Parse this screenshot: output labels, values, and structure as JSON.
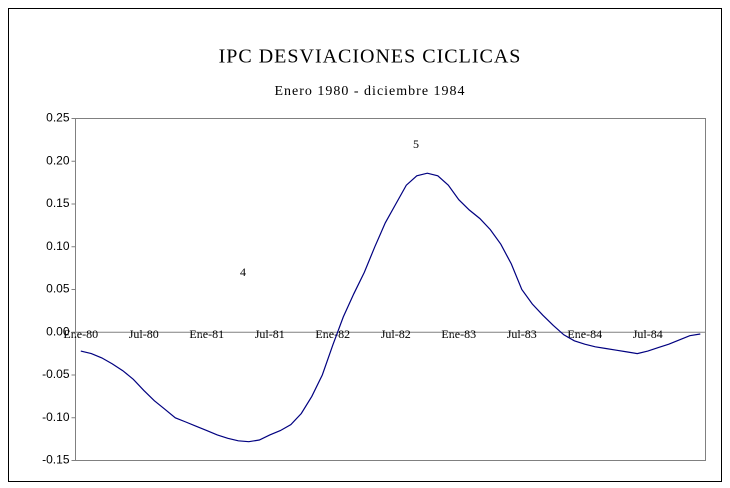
{
  "chart_data": {
    "type": "line",
    "title": "IPC DESVIACIONES CICLICAS",
    "subtitle": "Enero 1980 - diciembre 1984",
    "annotations": [
      "4",
      "5"
    ],
    "categories": [
      "Ene-80",
      null,
      null,
      null,
      null,
      null,
      "Jul-80",
      null,
      null,
      null,
      null,
      null,
      "Ene-81",
      null,
      null,
      null,
      null,
      null,
      "Jul-81",
      null,
      null,
      null,
      null,
      null,
      "Ene-82",
      null,
      null,
      null,
      null,
      null,
      "Jul-82",
      null,
      null,
      null,
      null,
      null,
      "Ene-83",
      null,
      null,
      null,
      null,
      null,
      "Jul-83",
      null,
      null,
      null,
      null,
      null,
      "Ene-84",
      null,
      null,
      null,
      null,
      null,
      "Jul-84",
      null,
      null,
      null,
      null,
      null
    ],
    "series": [
      {
        "name": "IPC",
        "color": "#000080",
        "values": [
          -0.022,
          -0.025,
          -0.03,
          -0.037,
          -0.045,
          -0.055,
          -0.068,
          -0.08,
          -0.09,
          -0.1,
          -0.105,
          -0.11,
          -0.115,
          -0.12,
          -0.124,
          -0.127,
          -0.128,
          -0.126,
          -0.12,
          -0.115,
          -0.108,
          -0.095,
          -0.075,
          -0.05,
          -0.015,
          0.018,
          0.045,
          0.07,
          0.1,
          0.128,
          0.15,
          0.172,
          0.183,
          0.186,
          0.183,
          0.172,
          0.155,
          0.143,
          0.133,
          0.12,
          0.103,
          0.08,
          0.05,
          0.033,
          0.02,
          0.008,
          -0.003,
          -0.01,
          -0.014,
          -0.017,
          -0.019,
          -0.021,
          -0.023,
          -0.025,
          -0.022,
          -0.018,
          -0.014,
          -0.009,
          -0.004,
          -0.002
        ]
      }
    ],
    "ylim": [
      -0.15,
      0.25
    ],
    "yticks": [
      -0.15,
      {
        "value": -0.1,
        "label": "-0.10"
      },
      -0.05,
      {
        "value": 0,
        "label": "0.00"
      },
      0.05,
      {
        "value": 0.1,
        "label": "0.10"
      },
      0.15,
      {
        "value": 0.2,
        "label": "0.20"
      },
      0.25
    ]
  }
}
